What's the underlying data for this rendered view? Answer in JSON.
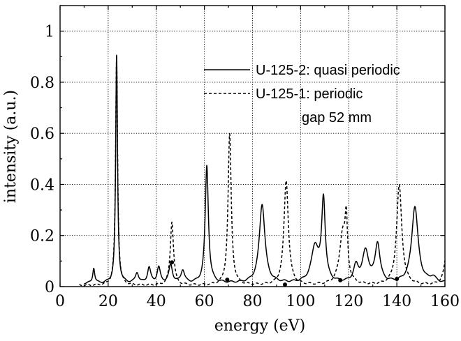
{
  "chart_data": {
    "type": "line",
    "xlabel": "energy (eV)",
    "ylabel": "intensity (a.u.)",
    "xlim": [
      0,
      160
    ],
    "ylim": [
      0,
      1.1
    ],
    "xticks": [
      0,
      20,
      40,
      60,
      80,
      100,
      120,
      140,
      160
    ],
    "xtick_labels": [
      "0",
      "20",
      "40",
      "60",
      "80",
      "100",
      "120",
      "140",
      "160"
    ],
    "yticks": [
      0,
      0.2,
      0.4,
      0.6,
      0.8,
      1.0
    ],
    "ytick_labels": [
      "0",
      "0.2",
      "0.4",
      "0.6",
      "0.8",
      "1"
    ],
    "grid": true,
    "legend_position": "top-right",
    "series": [
      {
        "name": "U-125-2: quasi periodic",
        "style": "solid",
        "peaks": [
          {
            "x": 14,
            "y": 0.06,
            "w": 0.5
          },
          {
            "x": 23.5,
            "y": 0.89,
            "w": 0.45
          },
          {
            "x": 32,
            "y": 0.04,
            "w": 0.8
          },
          {
            "x": 37,
            "y": 0.06,
            "w": 0.8
          },
          {
            "x": 41,
            "y": 0.06,
            "w": 0.8
          },
          {
            "x": 46,
            "y": 0.07,
            "w": 0.9
          },
          {
            "x": 51,
            "y": 0.05,
            "w": 0.9
          },
          {
            "x": 61,
            "y": 0.46,
            "w": 0.8
          },
          {
            "x": 84,
            "y": 0.31,
            "w": 1.4
          },
          {
            "x": 109.5,
            "y": 0.32,
            "w": 0.9
          },
          {
            "x": 106,
            "y": 0.14,
            "w": 1.8
          },
          {
            "x": 123,
            "y": 0.06,
            "w": 1.2
          },
          {
            "x": 127,
            "y": 0.12,
            "w": 1.6
          },
          {
            "x": 132,
            "y": 0.15,
            "w": 1.2
          },
          {
            "x": 147.5,
            "y": 0.3,
            "w": 1.6
          },
          {
            "x": 155,
            "y": 0.02,
            "w": 1.5
          }
        ],
        "baseline": 0.012
      },
      {
        "name": "U-125-1: periodic\ngap 52 mm",
        "style": "dashed",
        "peaks": [
          {
            "x": 23.5,
            "y": 0.9,
            "w": 0.5
          },
          {
            "x": 46.5,
            "y": 0.25,
            "w": 0.8
          },
          {
            "x": 70.5,
            "y": 0.59,
            "w": 0.8
          },
          {
            "x": 94,
            "y": 0.41,
            "w": 1.1
          },
          {
            "x": 117.5,
            "y": 0.2,
            "w": 1.6
          },
          {
            "x": 119,
            "y": 0.2,
            "w": 0.6
          },
          {
            "x": 141,
            "y": 0.39,
            "w": 1.3
          },
          {
            "x": 161,
            "y": 0.16,
            "w": 1.2
          }
        ],
        "baseline": 0.004
      }
    ],
    "markers": [
      {
        "x": 46.5,
        "y": 0.095
      },
      {
        "x": 69.5,
        "y": 0.027
      },
      {
        "x": 93.5,
        "y": 0.008
      },
      {
        "x": 116.5,
        "y": 0.025
      },
      {
        "x": 140,
        "y": 0.03
      }
    ],
    "legend": {
      "line1": "U-125-2: quasi periodic",
      "line2": "U-125-1: periodic",
      "line3": "gap 52 mm"
    }
  }
}
